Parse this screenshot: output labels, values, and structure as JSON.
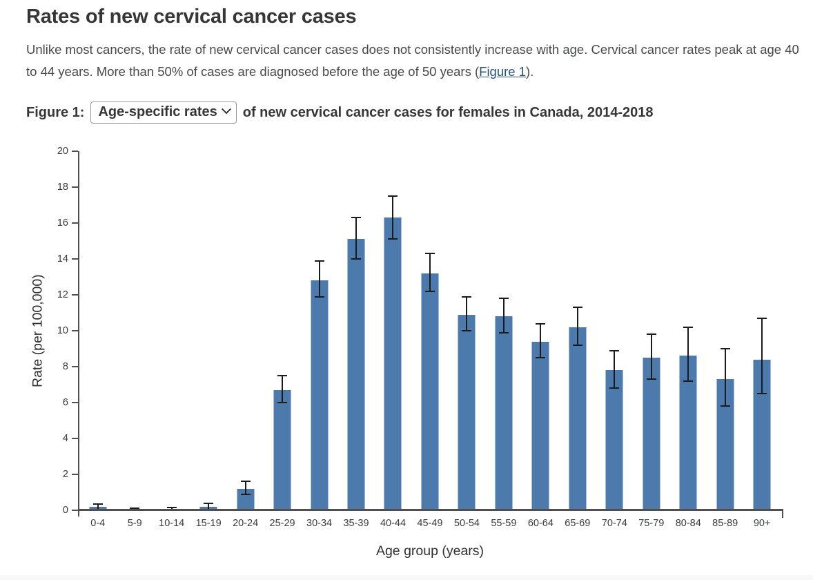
{
  "header": {
    "title": "Rates of new cervical cancer cases"
  },
  "intro": {
    "text_before": "Unlike most cancers, the rate of new cervical cancer cases does not consistently increase with age. Cervical cancer rates peak at age 40 to 44 years. More than 50% of cases are diagnosed before the age of 50 years (",
    "link_text": "Figure 1",
    "text_after": ")."
  },
  "figure": {
    "label": "Figure 1:",
    "dropdown_value": "Age-specific rates",
    "caption_rest": "of new cervical cancer cases for females in Canada, 2014-2018"
  },
  "chart_data": {
    "type": "bar",
    "title": "Age-specific rates of new cervical cancer cases for females in Canada, 2014-2018",
    "categories": [
      "0-4",
      "5-9",
      "10-14",
      "15-19",
      "20-24",
      "25-29",
      "30-34",
      "35-39",
      "40-44",
      "45-49",
      "50-54",
      "55-59",
      "60-64",
      "65-69",
      "70-74",
      "75-79",
      "80-84",
      "85-89",
      "90+"
    ],
    "values": [
      0.2,
      0.05,
      0.08,
      0.2,
      1.2,
      6.7,
      12.8,
      15.1,
      16.3,
      13.2,
      10.9,
      10.8,
      9.4,
      10.2,
      7.8,
      8.5,
      8.6,
      7.3,
      8.4
    ],
    "error_low": [
      0.05,
      0.0,
      0.0,
      0.05,
      0.9,
      6.0,
      11.9,
      14.0,
      15.1,
      12.2,
      10.0,
      9.9,
      8.5,
      9.2,
      6.8,
      7.3,
      7.2,
      5.8,
      6.5
    ],
    "error_high": [
      0.35,
      0.1,
      0.15,
      0.4,
      1.6,
      7.5,
      13.9,
      16.3,
      17.5,
      14.3,
      11.9,
      11.8,
      10.4,
      11.3,
      8.9,
      9.8,
      10.2,
      9.0,
      10.7
    ],
    "xlabel": "Age group (years)",
    "ylabel": "Rate (per 100,000)",
    "ylim": [
      0,
      20
    ],
    "ytick_step": 2,
    "bar_color": "#4d7aad",
    "error_bar_color": "#1b1b1b",
    "grid": "off",
    "legend": "none"
  }
}
